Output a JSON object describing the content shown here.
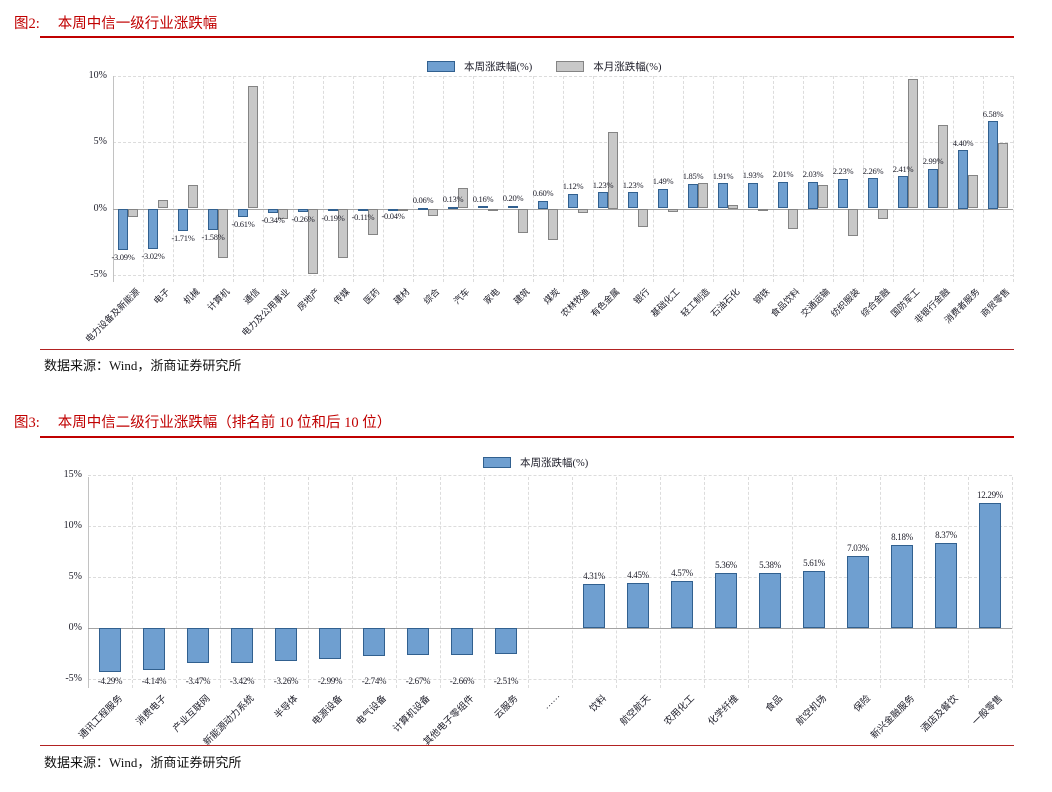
{
  "figure2": {
    "label": "图2:",
    "title": "本周中信一级行业涨跌幅",
    "source": "数据来源：Wind，浙商证券研究所"
  },
  "figure3": {
    "label": "图3:",
    "title": "本周中信二级行业涨跌幅（排名前 10 位和后 10 位）",
    "source": "数据来源：Wind，浙商证券研究所"
  },
  "colors": {
    "accent_red": "#c00000",
    "bar_blue_fill": "#6f9fd0",
    "bar_blue_stroke": "#31608f",
    "bar_gray_fill": "#c8c8c8",
    "bar_gray_stroke": "#848484",
    "gridline": "#dcdcdc",
    "zero_line": "#a3a3a3",
    "text": "#1c1c28"
  },
  "chart_data": [
    {
      "type": "bar",
      "title": "本周中信一级行业涨跌幅",
      "xlabel": "",
      "ylabel": "",
      "yticks": [
        10,
        5,
        0,
        -5
      ],
      "ytick_labels": [
        "10%",
        "5%",
        "0%",
        "-5%"
      ],
      "ylim": [
        -5.5,
        10.3
      ],
      "grid": "dashed",
      "legend_position": "top",
      "categories": [
        "电力设备及新能源",
        "电子",
        "机械",
        "计算机",
        "通信",
        "电力及公用事业",
        "房地产",
        "传媒",
        "医药",
        "建材",
        "综合",
        "汽车",
        "家电",
        "建筑",
        "煤炭",
        "农林牧渔",
        "有色金属",
        "银行",
        "基础化工",
        "轻工制造",
        "石油石化",
        "钢铁",
        "食品饮料",
        "交通运输",
        "纺织服装",
        "综合金融",
        "国防军工",
        "非银行金融",
        "消费者服务",
        "商贸零售"
      ],
      "series": [
        {
          "name": "本周涨跌幅(%)",
          "fill": "#6f9fd0",
          "stroke": "#31608f",
          "values": [
            -3.09,
            -3.02,
            -1.71,
            -1.58,
            -0.61,
            -0.34,
            -0.26,
            -0.19,
            -0.11,
            -0.04,
            0.06,
            0.13,
            0.16,
            0.2,
            0.6,
            1.12,
            1.23,
            1.23,
            1.49,
            1.85,
            1.91,
            1.93,
            2.01,
            2.03,
            2.23,
            2.26,
            2.41,
            2.99,
            4.4,
            6.58
          ],
          "labels": [
            "-3.09%",
            "-3.02%",
            "-1.71%",
            "-1.58%",
            "-0.61%",
            "-0.34%",
            "-0.26%",
            "-0.19%",
            "-0.11%",
            "-0.04%",
            "0.06%",
            "0.13%",
            "0.16%",
            "0.20%",
            "0.60%",
            "1.12%",
            "1.23%",
            "1.23%",
            "1.49%",
            "1.85%",
            "1.91%",
            "1.93%",
            "2.01%",
            "2.03%",
            "2.23%",
            "2.26%",
            "2.41%",
            "2.99%",
            "4.40%",
            "6.58%"
          ]
        },
        {
          "name": "本月涨跌幅(%)",
          "fill": "#c8c8c8",
          "stroke": "#848484",
          "values": [
            -0.6,
            0.65,
            1.8,
            -3.75,
            9.2,
            -0.8,
            -4.95,
            -3.7,
            -2.0,
            -0.1,
            -0.55,
            1.55,
            -0.15,
            -1.85,
            -2.4,
            -0.3,
            5.75,
            -1.35,
            -0.25,
            1.95,
            0.3,
            -0.2,
            -1.5,
            1.8,
            -2.1,
            -0.8,
            9.75,
            6.3,
            2.55,
            4.95
          ]
        }
      ]
    },
    {
      "type": "bar",
      "title": "本周中信二级行业涨跌幅（排名前 10 位和后 10 位）",
      "xlabel": "",
      "ylabel": "",
      "yticks": [
        15,
        10,
        5,
        0,
        -5
      ],
      "ytick_labels": [
        "15%",
        "10%",
        "5%",
        "0%",
        "-5%"
      ],
      "ylim": [
        -5.9,
        15.2
      ],
      "grid": "dashed",
      "legend_position": "top",
      "categories": [
        "通讯工程服务",
        "消费电子",
        "产业互联网",
        "新能源动力系统",
        "半导体",
        "电源设备",
        "电气设备",
        "计算机设备",
        "其他电子零组件",
        "云服务",
        "……",
        "饮料",
        "航空航天",
        "农用化工",
        "化学纤维",
        "食品",
        "航空机场",
        "保险",
        "新兴金融服务",
        "酒店及餐饮",
        "一般零售"
      ],
      "series": [
        {
          "name": "本周涨跌幅(%)",
          "fill": "#6f9fd0",
          "stroke": "#31608f",
          "values": [
            -4.29,
            -4.14,
            -3.47,
            -3.42,
            -3.26,
            -2.99,
            -2.74,
            -2.67,
            -2.66,
            -2.51,
            null,
            4.31,
            4.45,
            4.57,
            5.36,
            5.38,
            5.61,
            7.03,
            8.18,
            8.37,
            12.29
          ],
          "labels": [
            "-4.29%",
            "-4.14%",
            "-3.47%",
            "-3.42%",
            "-3.26%",
            "-2.99%",
            "-2.74%",
            "-2.67%",
            "-2.66%",
            "-2.51%",
            "",
            "4.31%",
            "4.45%",
            "4.57%",
            "5.36%",
            "5.38%",
            "5.61%",
            "7.03%",
            "8.18%",
            "8.37%",
            "12.29%"
          ]
        }
      ]
    }
  ]
}
